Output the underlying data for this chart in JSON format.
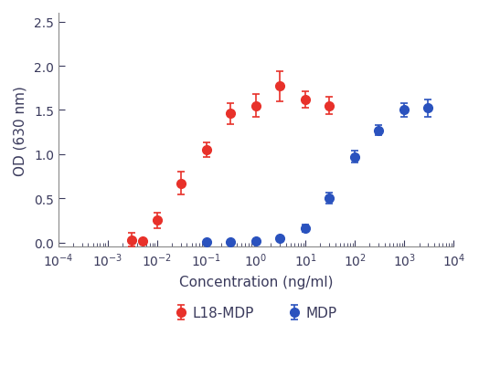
{
  "xlabel": "Concentration (ng/ml)",
  "ylabel": "OD (630 nm)",
  "ylim": [
    -0.05,
    2.6
  ],
  "yticks": [
    0.0,
    0.5,
    1.0,
    1.5,
    2.0,
    2.5
  ],
  "xlog_min": -4,
  "xlog_max": 4,
  "L18_MDP": {
    "x": [
      0.003,
      0.005,
      0.01,
      0.03,
      0.1,
      0.3,
      1.0,
      3.0,
      10.0,
      30.0
    ],
    "y": [
      0.03,
      0.02,
      0.25,
      0.67,
      1.05,
      1.46,
      1.55,
      1.77,
      1.62,
      1.55
    ],
    "yerr": [
      0.08,
      0.01,
      0.09,
      0.13,
      0.08,
      0.12,
      0.13,
      0.17,
      0.09,
      0.1
    ],
    "color": "#e8312a",
    "label": "L18-MDP"
  },
  "MDP": {
    "x": [
      0.1,
      0.3,
      1.0,
      3.0,
      10.0,
      30.0,
      100.0,
      300.0,
      1000.0,
      3000.0
    ],
    "y": [
      0.01,
      0.01,
      0.02,
      0.05,
      0.16,
      0.5,
      0.97,
      1.27,
      1.5,
      1.52
    ],
    "yerr": [
      0.005,
      0.005,
      0.01,
      0.02,
      0.04,
      0.06,
      0.07,
      0.06,
      0.08,
      0.1
    ],
    "color": "#2a52be",
    "label": "MDP"
  },
  "background_color": "#ffffff",
  "marker_size": 7,
  "line_width": 1.8,
  "capsize": 3,
  "elinewidth": 1.2,
  "capthick": 1.2
}
